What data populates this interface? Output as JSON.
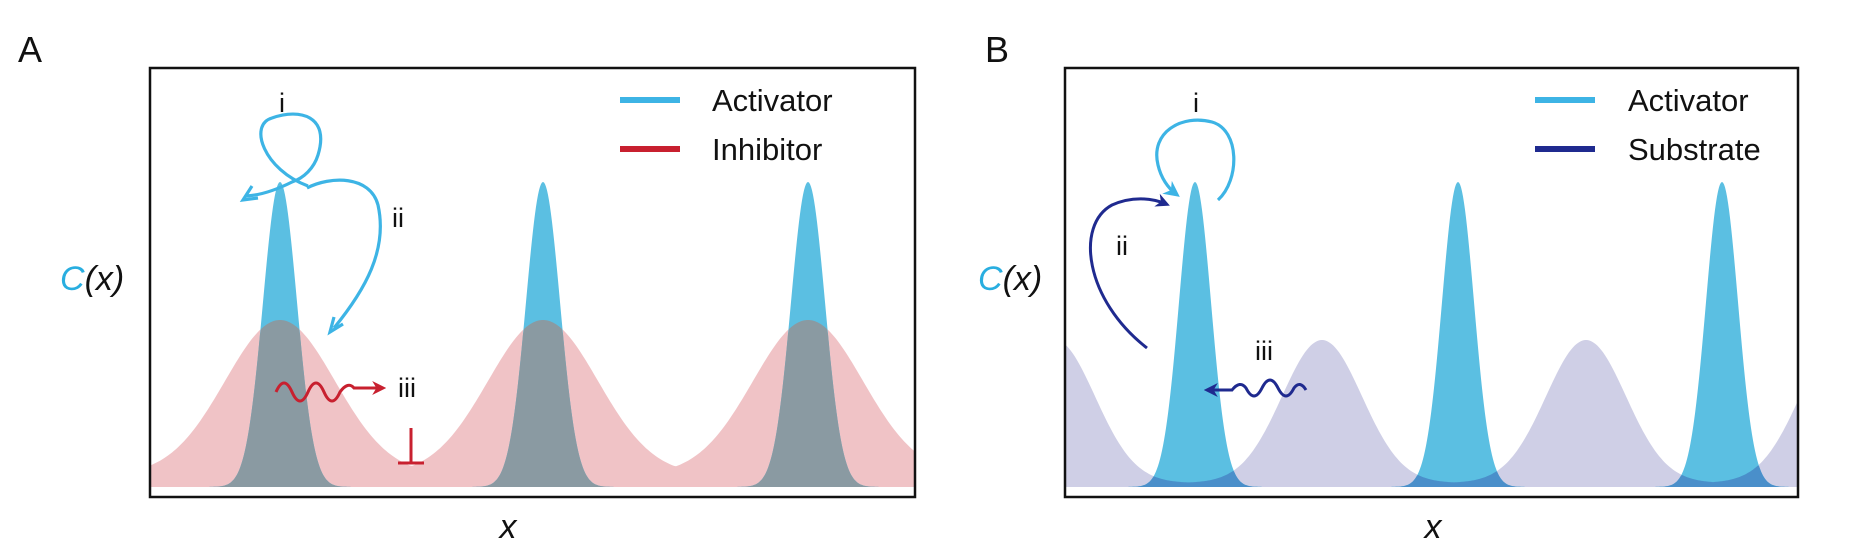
{
  "panels": [
    {
      "id": "A",
      "label": "A",
      "ylabel_c": "C",
      "ylabel_rest": "(x)",
      "xlabel": "x",
      "legend": [
        {
          "label": "Activator",
          "color": "#3db4e5"
        },
        {
          "label": "Inhibitor",
          "color": "#c8202f"
        }
      ],
      "annotations": {
        "i": "i",
        "ii": "ii",
        "iii": "iii"
      }
    },
    {
      "id": "B",
      "label": "B",
      "ylabel_c": "C",
      "ylabel_rest": "(x)",
      "xlabel": "x",
      "legend": [
        {
          "label": "Activator",
          "color": "#3db4e5"
        },
        {
          "label": "Substrate",
          "color": "#1f2a8f"
        }
      ],
      "annotations": {
        "i": "i",
        "ii": "ii",
        "iii": "iii"
      }
    }
  ],
  "colors": {
    "activator": "#3db4e5",
    "activator_fill": "#5bbfe2",
    "inhibitor": "#c8202f",
    "inhibitor_fill": "#f0c3c6",
    "overlap_fill": "#8a9aa2",
    "substrate": "#1f2a8f",
    "substrate_fill": "#cfcfe6",
    "substrate_overlap": "#4a8fca",
    "ylabel_c": "#29aee0"
  },
  "icons": [
    "self-activation-arrow",
    "activator-to-inhibitor-arrow",
    "diffusion-wavy-arrow",
    "inhibition-bar",
    "substrate-to-activator-arrow"
  ]
}
